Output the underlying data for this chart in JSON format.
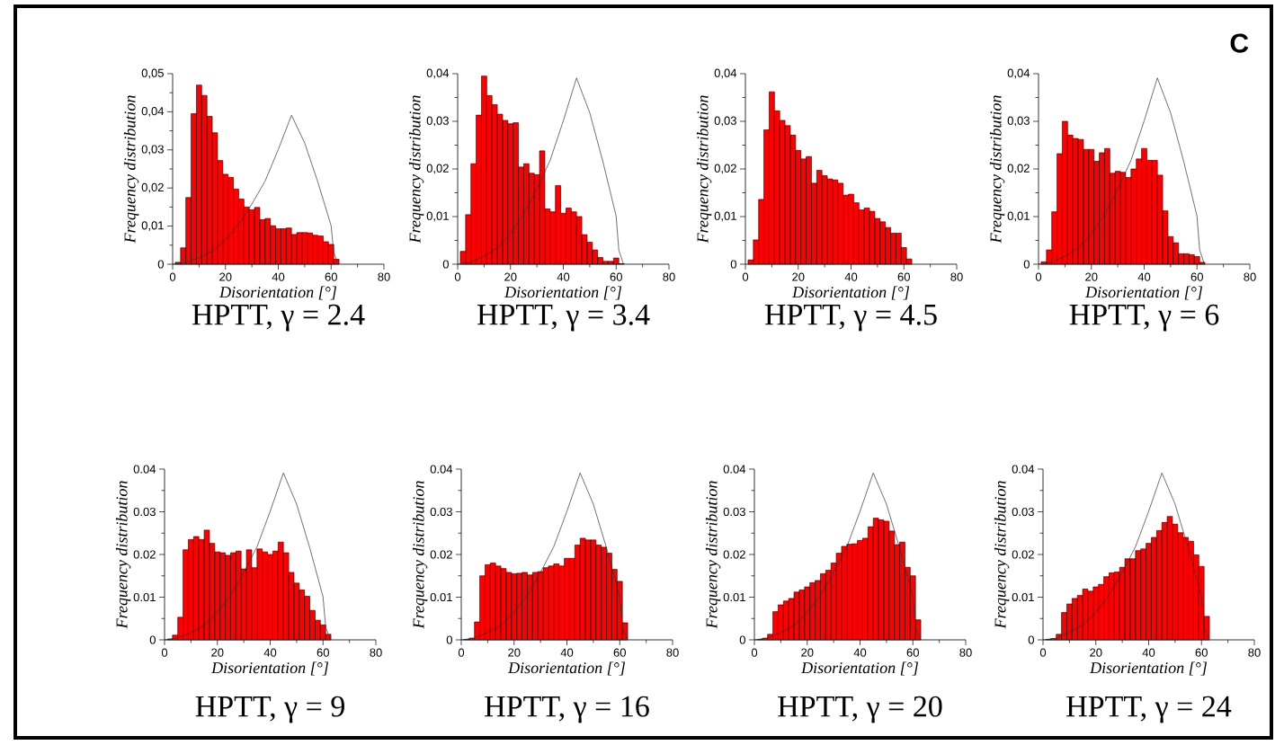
{
  "chart_data": [
    {
      "type": "histogram",
      "title": "HPTT, γ = 2.4",
      "xlabel": "Disorientation [°]",
      "ylabel": "Frequency distribution",
      "color": "#ff0000",
      "bins": [
        1,
        3,
        5,
        7,
        9,
        11,
        13,
        15,
        17,
        19,
        21,
        23,
        25,
        27,
        29,
        31,
        33,
        35,
        37,
        39,
        41,
        43,
        45,
        47,
        49,
        51,
        53,
        55,
        57,
        59,
        61,
        63
      ],
      "values": [
        0.0005,
        0.0043,
        0.0175,
        0.0395,
        0.047,
        0.0443,
        0.0388,
        0.0345,
        0.0272,
        0.0236,
        0.0228,
        0.0197,
        0.0171,
        0.015,
        0.0143,
        0.0149,
        0.0117,
        0.012,
        0.0101,
        0.0093,
        0.0093,
        0.0095,
        0.0078,
        0.0083,
        0.0083,
        0.0082,
        0.0076,
        0.0074,
        0.0059,
        0.0052,
        0.0013
      ],
      "series": [
        {
          "type": "line",
          "color": "#333333",
          "x": [
            0,
            5,
            10,
            15,
            20,
            25,
            30,
            35,
            40,
            45,
            50,
            55,
            60,
            61,
            62.8
          ],
          "values": [
            0,
            0.0004,
            0.0017,
            0.0034,
            0.0064,
            0.0105,
            0.0158,
            0.0218,
            0.0301,
            0.0391,
            0.0318,
            0.0215,
            0.0101,
            0.003,
            0
          ]
        }
      ],
      "xlim": [
        0,
        80
      ],
      "xticks": [
        0,
        20,
        40,
        60,
        80
      ],
      "ylim": [
        0,
        0.05
      ],
      "yticks": [
        0,
        {
          "value": 0.01,
          "label": "0,01"
        },
        {
          "value": 0.02,
          "label": "0,02"
        },
        {
          "value": 0.03,
          "label": "0,03"
        },
        {
          "value": 0.04,
          "label": "0,04"
        },
        {
          "value": 0.05,
          "label": "0,05"
        }
      ]
    },
    {
      "type": "histogram",
      "title": "HPTT, γ = 3.4",
      "xlabel": "Disorientation [°]",
      "ylabel": "Frequency distribution",
      "color": "#ff0000",
      "bins": [
        1,
        3,
        5,
        7,
        9,
        11,
        13,
        15,
        17,
        19,
        21,
        23,
        25,
        27,
        29,
        31,
        33,
        35,
        37,
        39,
        41,
        43,
        45,
        47,
        49,
        51,
        53,
        55,
        57,
        59,
        61,
        63
      ],
      "values": [
        0.0027,
        0.0104,
        0.0211,
        0.0313,
        0.0395,
        0.0354,
        0.0335,
        0.0315,
        0.0302,
        0.0295,
        0.0297,
        0.0204,
        0.0211,
        0.0191,
        0.0188,
        0.0238,
        0.0116,
        0.011,
        0.0165,
        0.0107,
        0.0118,
        0.011,
        0.01,
        0.0062,
        0.0046,
        0.003,
        0.0014,
        0.0006,
        0.0006,
        0.0013,
        0.0001
      ],
      "series": [
        {
          "type": "line",
          "color": "#333333",
          "x": [
            0,
            5,
            10,
            15,
            20,
            25,
            30,
            35,
            40,
            45,
            50,
            55,
            60,
            61,
            62.8
          ],
          "values": [
            0,
            0.0004,
            0.0017,
            0.0034,
            0.0064,
            0.0105,
            0.0158,
            0.0218,
            0.0301,
            0.0391,
            0.0318,
            0.0215,
            0.0101,
            0.003,
            0
          ]
        }
      ],
      "xlim": [
        0,
        80
      ],
      "xticks": [
        0,
        20,
        40,
        60,
        80
      ],
      "ylim": [
        0,
        0.04
      ],
      "yticks": [
        0,
        {
          "value": 0.01,
          "label": "0,01"
        },
        {
          "value": 0.02,
          "label": "0,02"
        },
        {
          "value": 0.03,
          "label": "0,03"
        },
        {
          "value": 0.04,
          "label": "0,04"
        }
      ]
    },
    {
      "type": "histogram",
      "title": "HPTT, γ = 4.5",
      "xlabel": "Disorientation [°]",
      "ylabel": "Frequency distribution",
      "color": "#ff0000",
      "bins": [
        1,
        3,
        5,
        7,
        9,
        11,
        13,
        15,
        17,
        19,
        21,
        23,
        25,
        27,
        29,
        31,
        33,
        35,
        37,
        39,
        41,
        43,
        45,
        47,
        49,
        51,
        53,
        55,
        57,
        59,
        61,
        63
      ],
      "values": [
        0.0009,
        0.0051,
        0.0136,
        0.0282,
        0.0362,
        0.0322,
        0.0302,
        0.0291,
        0.0271,
        0.0239,
        0.0221,
        0.0226,
        0.017,
        0.0197,
        0.0186,
        0.0179,
        0.0177,
        0.017,
        0.0145,
        0.0147,
        0.0129,
        0.0114,
        0.0118,
        0.0111,
        0.0096,
        0.0089,
        0.0077,
        0.0065,
        0.0065,
        0.0035,
        0.0011
      ],
      "xlim": [
        0,
        80
      ],
      "xticks": [
        0,
        20,
        40,
        60,
        80
      ],
      "ylim": [
        0,
        0.04
      ],
      "yticks": [
        0,
        {
          "value": 0.01,
          "label": "0,01"
        },
        {
          "value": 0.02,
          "label": "0,02"
        },
        {
          "value": 0.03,
          "label": "0,03"
        },
        {
          "value": 0.04,
          "label": "0,04"
        }
      ]
    },
    {
      "type": "histogram",
      "title": "HPTT, γ = 6",
      "xlabel": "Disorientation [°]",
      "ylabel": "Frequency distribution",
      "color": "#ff0000",
      "annotations": [
        "C"
      ],
      "bins": [
        1,
        3,
        5,
        7,
        9,
        11,
        13,
        15,
        17,
        19,
        21,
        23,
        25,
        27,
        29,
        31,
        33,
        35,
        37,
        39,
        41,
        43,
        45,
        47,
        49,
        51,
        53,
        55,
        57,
        59,
        61,
        63
      ],
      "values": [
        0.0005,
        0.003,
        0.011,
        0.0232,
        0.03,
        0.0271,
        0.0264,
        0.0262,
        0.0241,
        0.0241,
        0.0216,
        0.0234,
        0.0243,
        0.0191,
        0.0195,
        0.0193,
        0.0182,
        0.02,
        0.0221,
        0.0243,
        0.0218,
        0.0218,
        0.0187,
        0.0112,
        0.0058,
        0.0045,
        0.0022,
        0.0022,
        0.002,
        0.0016,
        0.0004
      ],
      "series": [
        {
          "type": "line",
          "color": "#333333",
          "x": [
            0,
            5,
            10,
            15,
            20,
            25,
            30,
            35,
            40,
            45,
            50,
            55,
            60,
            61,
            62.8
          ],
          "values": [
            0,
            0.0004,
            0.0017,
            0.0034,
            0.0064,
            0.0105,
            0.0158,
            0.0218,
            0.0301,
            0.0391,
            0.0318,
            0.0215,
            0.0101,
            0.003,
            0
          ]
        }
      ],
      "xlim": [
        0,
        80
      ],
      "xticks": [
        0,
        20,
        40,
        60,
        80
      ],
      "ylim": [
        0,
        0.04
      ],
      "yticks": [
        0,
        {
          "value": 0.01,
          "label": "0,01"
        },
        {
          "value": 0.02,
          "label": "0,02"
        },
        {
          "value": 0.03,
          "label": "0,03"
        },
        {
          "value": 0.04,
          "label": "0,04"
        }
      ]
    },
    {
      "type": "histogram",
      "title": "HPTT, γ = 9",
      "xlabel": "Disorientation [°]",
      "ylabel": "Frequency distribution",
      "color": "#ff0000",
      "bins": [
        1,
        3,
        5,
        7,
        9,
        11,
        13,
        15,
        17,
        19,
        21,
        23,
        25,
        27,
        29,
        31,
        33,
        35,
        37,
        39,
        41,
        43,
        45,
        47,
        49,
        51,
        53,
        55,
        57,
        59,
        61,
        63
      ],
      "values": [
        0.0002,
        0.0011,
        0.0053,
        0.0211,
        0.0235,
        0.0242,
        0.0235,
        0.0257,
        0.0226,
        0.0206,
        0.0204,
        0.0198,
        0.0204,
        0.0208,
        0.0166,
        0.0211,
        0.0169,
        0.0213,
        0.0206,
        0.02,
        0.0208,
        0.0229,
        0.0204,
        0.0158,
        0.0133,
        0.0117,
        0.0102,
        0.0069,
        0.0046,
        0.0035,
        0.0013
      ],
      "series": [
        {
          "type": "line",
          "color": "#333333",
          "x": [
            0,
            5,
            10,
            15,
            20,
            25,
            30,
            35,
            40,
            45,
            50,
            55,
            60,
            61,
            62.8
          ],
          "values": [
            0,
            0.0004,
            0.0017,
            0.0034,
            0.0064,
            0.0105,
            0.0158,
            0.0218,
            0.0301,
            0.0391,
            0.0318,
            0.0215,
            0.0101,
            0.003,
            0
          ]
        }
      ],
      "xlim": [
        0,
        80
      ],
      "xticks": [
        0,
        20,
        40,
        60,
        80
      ],
      "ylim": [
        0,
        0.04
      ],
      "yticks": [
        0,
        0.01,
        0.02,
        0.03,
        0.04
      ]
    },
    {
      "type": "histogram",
      "title": "HPTT, γ = 16",
      "xlabel": "Disorientation [°]",
      "ylabel": "Frequency distribution",
      "color": "#ff0000",
      "bins": [
        1,
        3,
        5,
        7,
        9,
        11,
        13,
        15,
        17,
        19,
        21,
        23,
        25,
        27,
        29,
        31,
        33,
        35,
        37,
        39,
        41,
        43,
        45,
        47,
        49,
        51,
        53,
        55,
        57,
        59,
        61,
        63
      ],
      "values": [
        0.0001,
        0.0004,
        0.0042,
        0.015,
        0.0176,
        0.018,
        0.0173,
        0.0167,
        0.0158,
        0.0155,
        0.0156,
        0.0158,
        0.0152,
        0.0158,
        0.016,
        0.0169,
        0.0173,
        0.0178,
        0.0173,
        0.0191,
        0.0191,
        0.0222,
        0.0238,
        0.0234,
        0.0234,
        0.0222,
        0.0217,
        0.0203,
        0.0165,
        0.0137,
        0.004
      ],
      "series": [
        {
          "type": "line",
          "color": "#333333",
          "x": [
            0,
            5,
            10,
            15,
            20,
            25,
            30,
            35,
            40,
            45,
            50,
            55,
            60,
            61,
            62.8
          ],
          "values": [
            0,
            0.0004,
            0.0017,
            0.0034,
            0.0064,
            0.0105,
            0.0158,
            0.0218,
            0.0301,
            0.0391,
            0.0318,
            0.0215,
            0.0101,
            0.003,
            0
          ]
        }
      ],
      "xlim": [
        0,
        80
      ],
      "xticks": [
        0,
        20,
        40,
        60,
        80
      ],
      "ylim": [
        0,
        0.04
      ],
      "yticks": [
        0,
        0.01,
        0.02,
        0.03,
        0.04
      ]
    },
    {
      "type": "histogram",
      "title": "HPTT, γ = 20",
      "xlabel": "Disorientation [°]",
      "ylabel": "Frequency distribution",
      "color": "#ff0000",
      "bins": [
        1,
        3,
        5,
        7,
        9,
        11,
        13,
        15,
        17,
        19,
        21,
        23,
        25,
        27,
        29,
        31,
        33,
        35,
        37,
        39,
        41,
        43,
        45,
        47,
        49,
        51,
        53,
        55,
        57,
        59,
        61,
        63
      ],
      "values": [
        0.0001,
        0.0004,
        0.0013,
        0.0066,
        0.0082,
        0.0091,
        0.0097,
        0.0112,
        0.0117,
        0.0124,
        0.0134,
        0.0139,
        0.0155,
        0.0163,
        0.018,
        0.0203,
        0.0219,
        0.0224,
        0.0225,
        0.0233,
        0.0238,
        0.0265,
        0.0285,
        0.0281,
        0.0278,
        0.0255,
        0.0223,
        0.0229,
        0.017,
        0.015,
        0.0047
      ],
      "series": [
        {
          "type": "line",
          "color": "#333333",
          "x": [
            0,
            5,
            10,
            15,
            20,
            25,
            30,
            35,
            40,
            45,
            50,
            55,
            60,
            61,
            62.8
          ],
          "values": [
            0,
            0.0004,
            0.0017,
            0.0034,
            0.0064,
            0.0105,
            0.0158,
            0.0218,
            0.0301,
            0.0391,
            0.0318,
            0.0215,
            0.0101,
            0.003,
            0
          ]
        }
      ],
      "xlim": [
        0,
        80
      ],
      "xticks": [
        0,
        20,
        40,
        60,
        80
      ],
      "ylim": [
        0,
        0.04
      ],
      "yticks": [
        0,
        0.01,
        0.02,
        0.03,
        0.04
      ]
    },
    {
      "type": "histogram",
      "title": "HPTT, γ = 24",
      "xlabel": "Disorientation [°]",
      "ylabel": "Frequency distribution",
      "color": "#ff0000",
      "bins": [
        1,
        3,
        5,
        7,
        9,
        11,
        13,
        15,
        17,
        19,
        21,
        23,
        25,
        27,
        29,
        31,
        33,
        35,
        37,
        39,
        41,
        43,
        45,
        47,
        49,
        51,
        53,
        55,
        57,
        59,
        61,
        63
      ],
      "values": [
        0.0001,
        0.0003,
        0.0013,
        0.0064,
        0.0084,
        0.0097,
        0.0104,
        0.0119,
        0.0114,
        0.0124,
        0.013,
        0.0148,
        0.0157,
        0.0159,
        0.017,
        0.019,
        0.019,
        0.0209,
        0.0213,
        0.0226,
        0.024,
        0.0256,
        0.0275,
        0.0289,
        0.0271,
        0.0251,
        0.024,
        0.0231,
        0.0199,
        0.0172,
        0.0055
      ],
      "series": [
        {
          "type": "line",
          "color": "#333333",
          "x": [
            0,
            5,
            10,
            15,
            20,
            25,
            30,
            35,
            40,
            45,
            50,
            55,
            60,
            61,
            62.8
          ],
          "values": [
            0,
            0.0004,
            0.0017,
            0.0034,
            0.0064,
            0.0105,
            0.0158,
            0.0218,
            0.0301,
            0.0391,
            0.0318,
            0.0215,
            0.0101,
            0.003,
            0
          ]
        }
      ],
      "xlim": [
        0,
        80
      ],
      "xticks": [
        0,
        20,
        40,
        60,
        80
      ],
      "ylim": [
        0,
        0.04
      ],
      "yticks": [
        0,
        0.01,
        0.02,
        0.03,
        0.04
      ]
    }
  ]
}
